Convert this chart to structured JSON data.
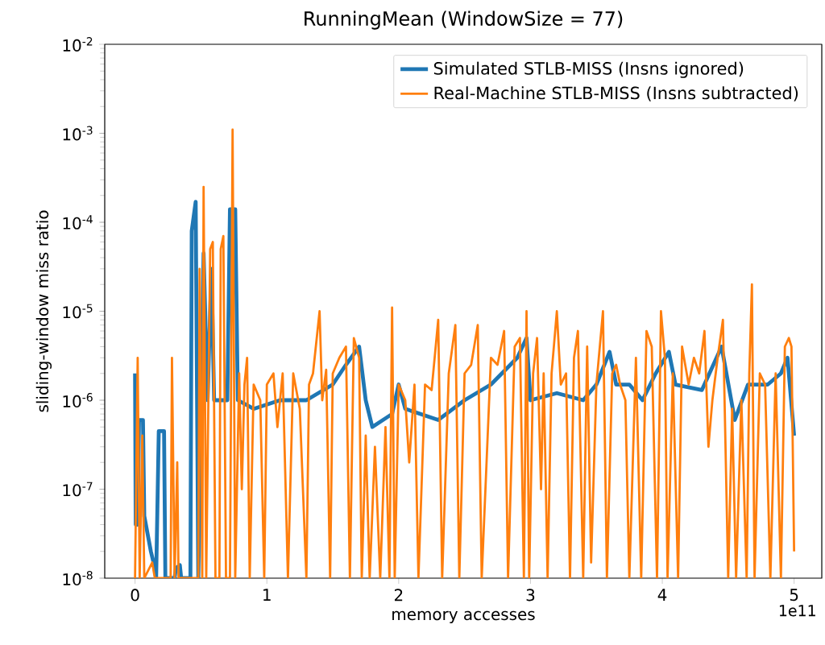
{
  "chart_data": {
    "type": "line",
    "title": "RunningMean (WindowSize = 77)",
    "xlabel": "memory accesses",
    "ylabel": "sliding-window miss ratio",
    "annotations": [
      "1e11"
    ],
    "log": "y",
    "grid": false,
    "legend": "top right",
    "marker": "none",
    "line_style": "solid",
    "xlim": [
      -0.23,
      5.21
    ],
    "xticks": [
      0,
      1,
      2,
      3,
      4,
      5
    ],
    "ylim": [
      1e-08,
      0.01
    ],
    "yticks": [
      {
        "value": 1e-08,
        "label": "10$^{-8}$"
      },
      {
        "value": 1e-07,
        "label": "10$^{-7}$"
      },
      {
        "value": 1e-06,
        "label": "10$^{-6}$"
      },
      {
        "value": 1e-05,
        "label": "10$^{-5}$"
      },
      {
        "value": 0.0001,
        "label": "10$^{-4}$"
      },
      {
        "value": 0.001,
        "label": "10$^{-3}$"
      },
      {
        "value": 0.01,
        "label": "10$^{-2}$"
      }
    ],
    "series": [
      {
        "name": "Simulated STLB-MISS (Insns ignored)",
        "color": "#1f77b4",
        "x": [
          0.0,
          0.005,
          0.02,
          0.03,
          0.06,
          0.07,
          0.12,
          0.14,
          0.16,
          0.18,
          0.22,
          0.23,
          0.3,
          0.31,
          0.34,
          0.35,
          0.42,
          0.43,
          0.46,
          0.48,
          0.52,
          0.55,
          0.58,
          0.6,
          0.7,
          0.72,
          0.76,
          0.78,
          0.9,
          1.1,
          1.3,
          1.5,
          1.6,
          1.7,
          1.75,
          1.8,
          1.95,
          2.0,
          2.05,
          2.3,
          2.5,
          2.7,
          2.9,
          2.97,
          3.0,
          3.2,
          3.4,
          3.5,
          3.6,
          3.65,
          3.75,
          3.85,
          3.95,
          4.05,
          4.1,
          4.3,
          4.45,
          4.55,
          4.65,
          4.8,
          4.9,
          4.95,
          5.0
        ],
        "values": [
          2e-06,
          4e-08,
          4e-08,
          6e-07,
          6e-07,
          5e-08,
          2e-08,
          1.5e-08,
          1e-08,
          4.5e-07,
          4.5e-07,
          1e-08,
          1e-08,
          1.3e-08,
          1.4e-08,
          1e-08,
          1e-08,
          8e-05,
          0.00017,
          1e-08,
          4.5e-05,
          1e-06,
          3e-05,
          1e-06,
          1e-06,
          0.00014,
          0.00014,
          1e-06,
          8e-07,
          1e-06,
          1e-06,
          1.5e-06,
          2.5e-06,
          4e-06,
          1e-06,
          5e-07,
          7e-07,
          1.5e-06,
          8e-07,
          6e-07,
          1e-06,
          1.5e-06,
          3e-06,
          5e-06,
          1e-06,
          1.2e-06,
          1e-06,
          1.5e-06,
          3.5e-06,
          1.5e-06,
          1.5e-06,
          1e-06,
          2e-06,
          3.5e-06,
          1.5e-06,
          1.3e-06,
          4e-06,
          6e-07,
          1.5e-06,
          1.5e-06,
          2e-06,
          3e-06,
          4e-07
        ]
      },
      {
        "name": "Real-Machine STLB-MISS (Insns subtracted)",
        "color": "#ff7f0e",
        "x": [
          0.0,
          0.02,
          0.035,
          0.055,
          0.07,
          0.13,
          0.15,
          0.27,
          0.28,
          0.3,
          0.32,
          0.33,
          0.48,
          0.49,
          0.51,
          0.52,
          0.54,
          0.57,
          0.59,
          0.61,
          0.64,
          0.65,
          0.67,
          0.69,
          0.72,
          0.74,
          0.76,
          0.79,
          0.81,
          0.83,
          0.85,
          0.87,
          0.9,
          0.95,
          0.98,
          1.0,
          1.05,
          1.08,
          1.12,
          1.16,
          1.2,
          1.25,
          1.3,
          1.32,
          1.35,
          1.4,
          1.42,
          1.45,
          1.48,
          1.5,
          1.55,
          1.6,
          1.63,
          1.66,
          1.7,
          1.72,
          1.75,
          1.78,
          1.82,
          1.86,
          1.9,
          1.93,
          1.95,
          1.97,
          2.0,
          2.05,
          2.08,
          2.12,
          2.15,
          2.2,
          2.25,
          2.3,
          2.33,
          2.38,
          2.43,
          2.46,
          2.5,
          2.55,
          2.6,
          2.63,
          2.7,
          2.75,
          2.8,
          2.83,
          2.88,
          2.92,
          2.95,
          2.97,
          2.99,
          3.02,
          3.05,
          3.08,
          3.1,
          3.13,
          3.16,
          3.2,
          3.23,
          3.27,
          3.3,
          3.33,
          3.36,
          3.4,
          3.43,
          3.46,
          3.5,
          3.55,
          3.58,
          3.62,
          3.65,
          3.68,
          3.72,
          3.75,
          3.8,
          3.84,
          3.88,
          3.92,
          3.96,
          3.99,
          4.02,
          4.04,
          4.08,
          4.12,
          4.15,
          4.2,
          4.24,
          4.28,
          4.32,
          4.35,
          4.38,
          4.42,
          4.46,
          4.5,
          4.53,
          4.56,
          4.6,
          4.64,
          4.66,
          4.68,
          4.7,
          4.74,
          4.78,
          4.82,
          4.86,
          4.9,
          4.93,
          4.96,
          4.98,
          5.0
        ],
        "values": [
          1e-08,
          3e-06,
          1e-08,
          4e-07,
          1e-08,
          1.5e-08,
          1e-08,
          1e-08,
          3e-06,
          1e-08,
          2e-07,
          1e-08,
          1e-08,
          3e-05,
          1e-08,
          0.00025,
          1e-08,
          5e-05,
          6e-05,
          1e-08,
          1e-08,
          5e-05,
          7e-05,
          1e-08,
          1e-08,
          0.0011,
          1e-08,
          2e-06,
          1e-07,
          1.5e-06,
          3e-06,
          1e-08,
          1.5e-06,
          1e-06,
          1e-08,
          1.5e-06,
          2e-06,
          5e-07,
          2e-06,
          1e-08,
          2e-06,
          8e-07,
          1e-08,
          1.5e-06,
          2e-06,
          1e-05,
          1e-06,
          2.2e-06,
          1e-08,
          2e-06,
          3e-06,
          4e-06,
          1e-08,
          5e-06,
          3e-06,
          1e-08,
          4e-07,
          1e-08,
          3e-07,
          1e-08,
          5e-07,
          1e-08,
          1.1e-05,
          1e-08,
          1.5e-06,
          1e-06,
          2e-07,
          1.5e-06,
          1e-08,
          1.5e-06,
          1.3e-06,
          8e-06,
          1e-08,
          2e-06,
          7e-06,
          1e-08,
          2e-06,
          2.5e-06,
          7e-06,
          1e-08,
          3e-06,
          2.5e-06,
          6e-06,
          1e-08,
          4e-06,
          5e-06,
          1e-08,
          1e-05,
          1e-08,
          2e-06,
          5e-06,
          1e-07,
          2e-06,
          1e-08,
          2e-06,
          1e-05,
          1.5e-06,
          2e-06,
          1e-08,
          3e-06,
          6e-06,
          1e-08,
          4e-06,
          1.5e-08,
          1.5e-06,
          1e-05,
          1e-08,
          2e-06,
          2.5e-06,
          1.5e-06,
          1e-06,
          1e-08,
          3e-06,
          1e-08,
          6e-06,
          4e-06,
          1e-08,
          1e-05,
          3e-06,
          1e-08,
          2e-06,
          1e-08,
          4e-06,
          1.5e-06,
          3e-06,
          2e-06,
          6e-06,
          3e-07,
          1e-06,
          3e-06,
          8e-06,
          1e-08,
          8e-07,
          1e-08,
          1e-06,
          1e-08,
          2e-06,
          2e-05,
          1e-08,
          2e-06,
          1.5e-06,
          1e-08,
          2e-06,
          1e-08,
          4e-06,
          5e-06,
          4e-06,
          2e-08
        ]
      }
    ]
  }
}
